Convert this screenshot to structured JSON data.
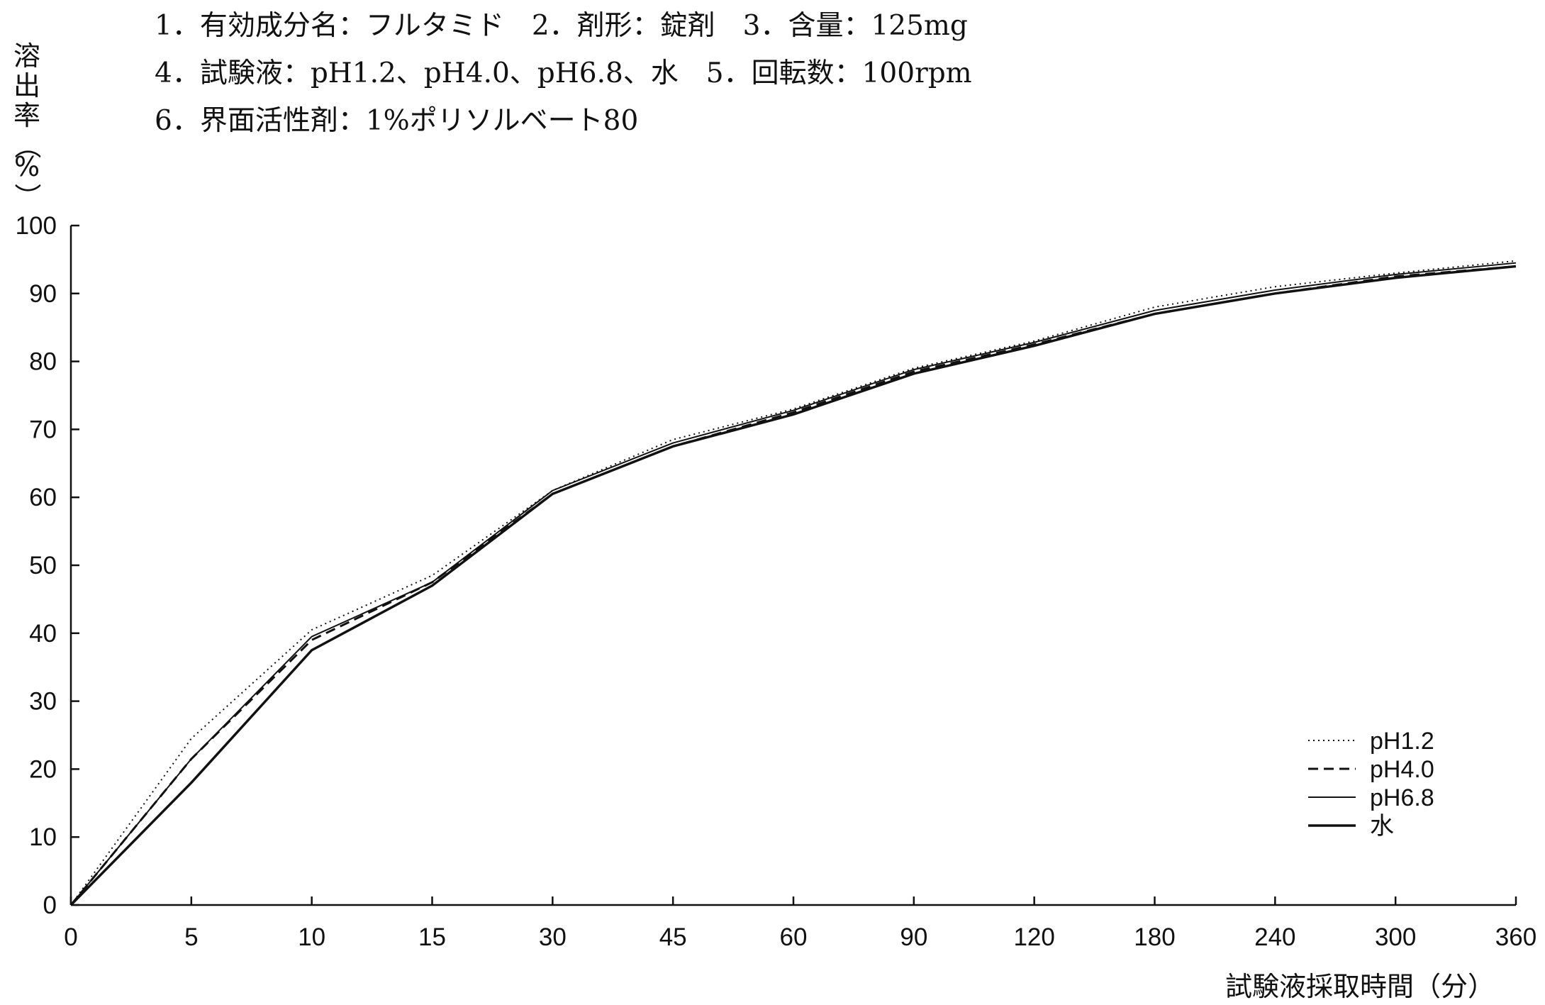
{
  "header": {
    "lines": [
      "1．有効成分名：フルタミド　2．剤形：錠剤　3．含量：125mg",
      "4．試験液：pH1.2、pH4.0、pH6.8、水　5．回転数：100rpm",
      "6．界面活性剤：1%ポリソルベート80"
    ]
  },
  "chart_data": {
    "type": "line",
    "title": "",
    "xlabel": "試験液採取時間（分）",
    "ylabel_chars": [
      "溶",
      "出",
      "率",
      "（",
      "%",
      "）"
    ],
    "categories": [
      "0",
      "5",
      "10",
      "15",
      "30",
      "45",
      "60",
      "90",
      "120",
      "180",
      "240",
      "300",
      "360"
    ],
    "y_ticks": [
      "0",
      "10",
      "20",
      "30",
      "40",
      "50",
      "60",
      "70",
      "80",
      "90",
      "100"
    ],
    "ylim": [
      0,
      100
    ],
    "grid": false,
    "legend_position": "bottom-right",
    "series": [
      {
        "name": "pH1.2",
        "dash": "dotted",
        "width": 2,
        "values": [
          0,
          24.5,
          40.5,
          48.5,
          61.0,
          68.5,
          73.0,
          79.0,
          83.0,
          88.0,
          91.0,
          93.0,
          94.8
        ]
      },
      {
        "name": "pH4.0",
        "dash": "dashed",
        "width": 3,
        "values": [
          0,
          21.5,
          39.0,
          47.5,
          60.5,
          67.5,
          72.5,
          78.5,
          82.5,
          87.0,
          90.0,
          92.5,
          94.0
        ]
      },
      {
        "name": "pH6.8",
        "dash": "solid",
        "width": 2,
        "values": [
          0,
          21.5,
          39.5,
          47.5,
          61.0,
          68.0,
          72.8,
          78.8,
          82.8,
          87.5,
          90.5,
          92.8,
          94.5
        ]
      },
      {
        "name": "水",
        "dash": "solid",
        "width": 3.5,
        "values": [
          0,
          18.0,
          37.5,
          47.0,
          60.5,
          67.5,
          72.2,
          78.2,
          82.3,
          87.0,
          90.0,
          92.3,
          94.0
        ]
      }
    ]
  }
}
